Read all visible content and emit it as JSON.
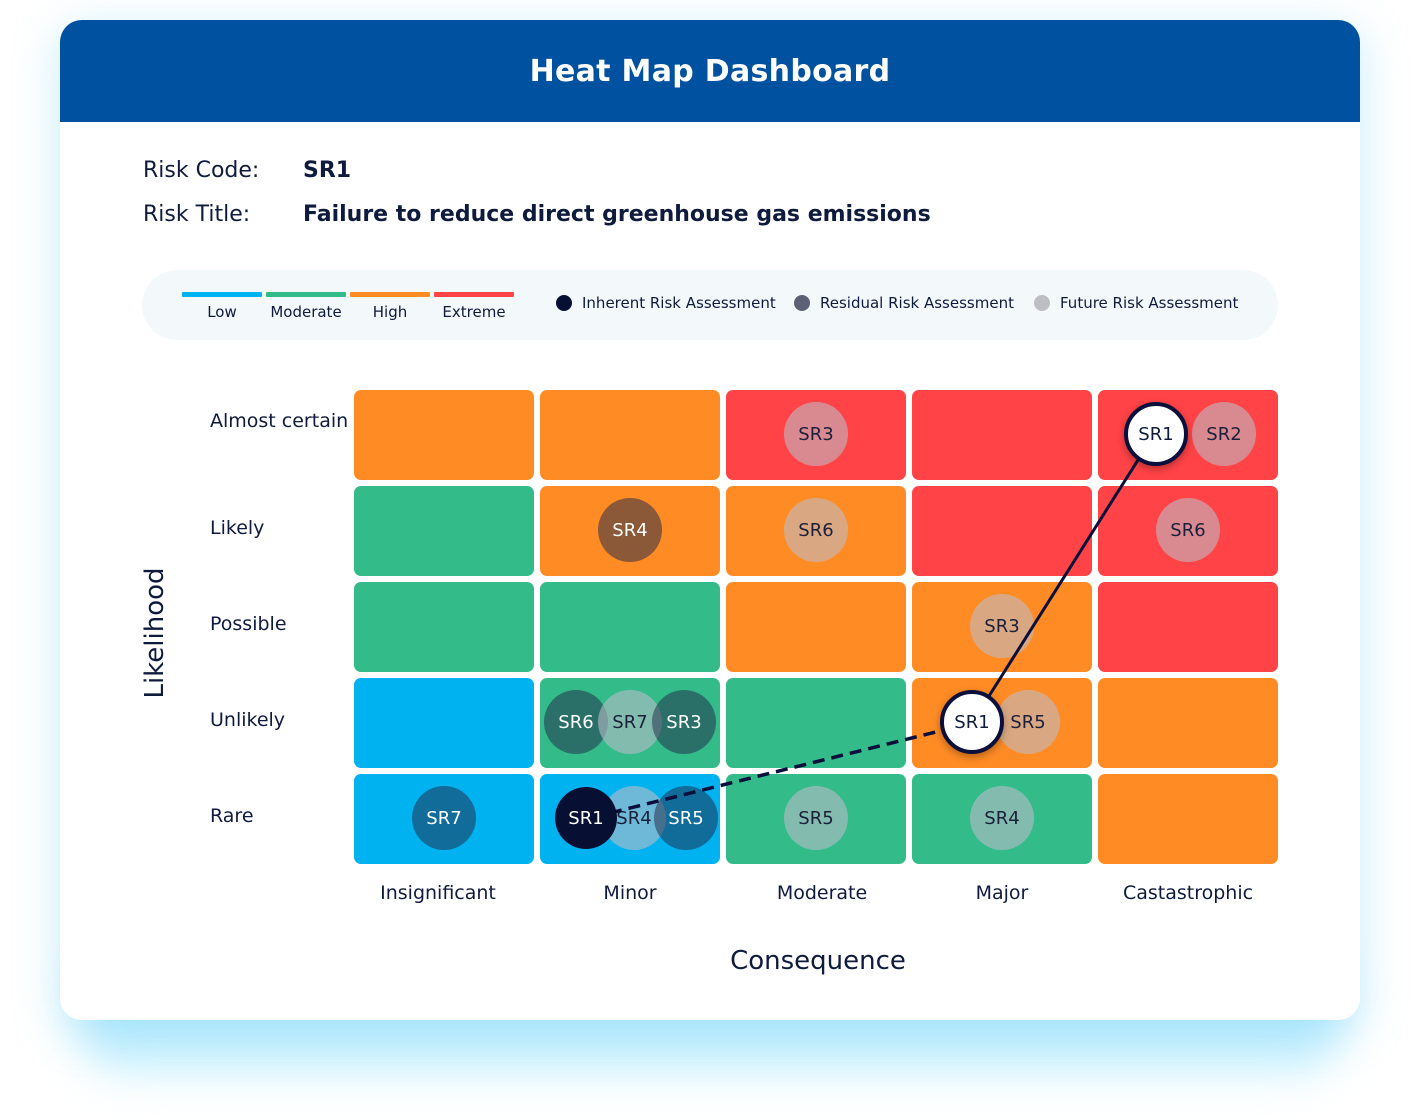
{
  "header": {
    "title": "Heat Map Dashboard"
  },
  "risk": {
    "code_label": "Risk Code:",
    "code_value": "SR1",
    "title_label": "Risk Title:",
    "title_value": "Failure to reduce direct greenhouse gas emissions"
  },
  "legend": {
    "levels": [
      {
        "label": "Low",
        "color": "#00b2ef"
      },
      {
        "label": "Moderate",
        "color": "#33bb8a"
      },
      {
        "label": "High",
        "color": "#ff8b24"
      },
      {
        "label": "Extreme",
        "color": "#ff4346"
      }
    ],
    "assessments": [
      {
        "label": "Inherent Risk Assessment",
        "color": "#071033"
      },
      {
        "label": "Residual Risk Assessment",
        "color": "#5c6175"
      },
      {
        "label": "Future Risk Assessment",
        "color": "#bdbdc5"
      }
    ]
  },
  "matrix": {
    "y_title": "Likelihood",
    "x_title": "Consequence",
    "likelihood_labels": [
      "Almost certain",
      "Likely",
      "Possible",
      "Unlikely",
      "Rare"
    ],
    "consequence_labels": [
      "Insignificant",
      "Minor",
      "Moderate",
      "Major",
      "Castastrophic"
    ],
    "cell_levels": [
      [
        "High",
        "High",
        "Extreme",
        "Extreme",
        "Extreme"
      ],
      [
        "Moderate",
        "High",
        "High",
        "Extreme",
        "Extreme"
      ],
      [
        "Moderate",
        "Moderate",
        "High",
        "High",
        "Extreme"
      ],
      [
        "Low",
        "Moderate",
        "Moderate",
        "High",
        "High"
      ],
      [
        "Low",
        "Low",
        "Moderate",
        "Moderate",
        "High"
      ]
    ],
    "markers": [
      {
        "label": "SR3",
        "row": 0,
        "col": 2,
        "type": "future"
      },
      {
        "label": "SR2",
        "row": 0,
        "col": 4,
        "type": "future"
      },
      {
        "label": "SR1",
        "row": 0,
        "col": 4,
        "type": "inherent-highlight"
      },
      {
        "label": "SR4",
        "row": 1,
        "col": 1,
        "type": "residual"
      },
      {
        "label": "SR6",
        "row": 1,
        "col": 2,
        "type": "future"
      },
      {
        "label": "SR6",
        "row": 1,
        "col": 4,
        "type": "future"
      },
      {
        "label": "SR3",
        "row": 2,
        "col": 3,
        "type": "future"
      },
      {
        "label": "SR6",
        "row": 3,
        "col": 1,
        "type": "residual"
      },
      {
        "label": "SR7",
        "row": 3,
        "col": 1,
        "type": "future"
      },
      {
        "label": "SR3",
        "row": 3,
        "col": 1,
        "type": "residual"
      },
      {
        "label": "SR5",
        "row": 3,
        "col": 3,
        "type": "future"
      },
      {
        "label": "SR1",
        "row": 3,
        "col": 3,
        "type": "residual-highlight"
      },
      {
        "label": "SR7",
        "row": 4,
        "col": 0,
        "type": "residual"
      },
      {
        "label": "SR4",
        "row": 4,
        "col": 1,
        "type": "future"
      },
      {
        "label": "SR5",
        "row": 4,
        "col": 1,
        "type": "residual"
      },
      {
        "label": "SR1",
        "row": 4,
        "col": 1,
        "type": "future-highlight"
      },
      {
        "label": "SR5",
        "row": 4,
        "col": 2,
        "type": "future"
      },
      {
        "label": "SR4",
        "row": 4,
        "col": 3,
        "type": "future"
      }
    ]
  }
}
